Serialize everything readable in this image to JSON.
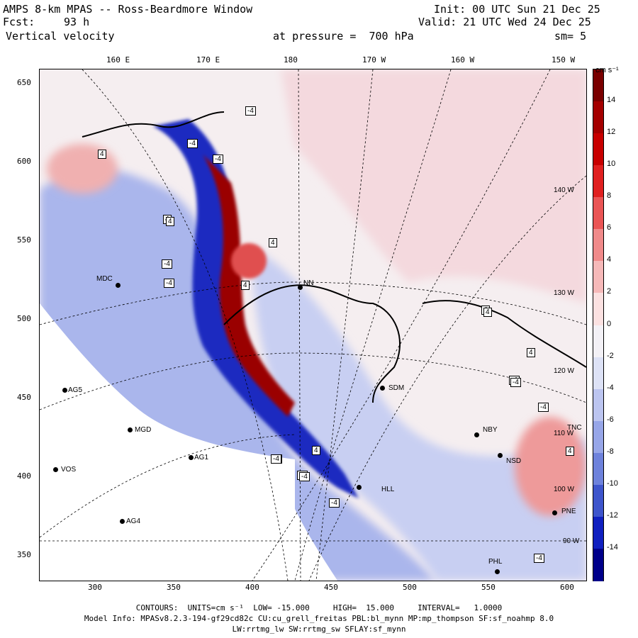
{
  "header": {
    "title": "AMPS 8-km MPAS -- Ross-Beardmore Window",
    "fcst_label": "Fcst:",
    "fcst_value": "93 h",
    "variable": "Vertical velocity",
    "init": "Init: 00 UTC Sun 21 Dec 25",
    "valid": "Valid: 21 UTC Wed 24 Dec 25",
    "pressure": "at pressure =  700 hPa",
    "smoothing": "sm= 5"
  },
  "axes": {
    "top_lon_labels": [
      "160 E",
      "170 E",
      "180",
      "170 W",
      "160 W",
      "150 W"
    ],
    "y_ticks": [
      "650",
      "600",
      "550",
      "500",
      "450",
      "400",
      "350"
    ],
    "x_ticks": [
      "300",
      "350",
      "400",
      "450",
      "500",
      "550",
      "600"
    ]
  },
  "colorbar": {
    "units": "cm s⁻¹",
    "labels": [
      "14",
      "12",
      "10",
      "8",
      "6",
      "4",
      "2",
      "0",
      "-2",
      "-4",
      "-6",
      "-8",
      "-10",
      "-12",
      "-14"
    ],
    "colors": [
      "#7a0000",
      "#a40000",
      "#c80000",
      "#e02020",
      "#ea5555",
      "#f08a8a",
      "#f6b9b9",
      "#fbe1e1",
      "#f3f1f6",
      "#dde2f6",
      "#bcc5f0",
      "#97a6e8",
      "#6e82dc",
      "#3e55cc",
      "#1020c0",
      "#00008a"
    ]
  },
  "meridian_labels": [
    "140 W",
    "130 W",
    "120 W",
    "110 W",
    "100 W",
    "90 W"
  ],
  "stations": [
    "MDC",
    "NN",
    "AG5",
    "MGD",
    "VOS",
    "AG1",
    "AG4",
    "SDM",
    "NBY",
    "NSD",
    "HLL",
    "PNE",
    "PHL",
    "TNC"
  ],
  "contour_box_labels": [
    "4",
    "-4",
    "4",
    "4",
    "-4",
    "-4",
    "4",
    "-4",
    "4",
    "-4",
    "-4",
    "-4",
    "4",
    "4",
    "-4",
    "4",
    "-4",
    "4",
    "-4",
    "-4",
    "-4",
    "4",
    "-4",
    "-4"
  ],
  "footer": {
    "contours": "CONTOURS:  UNITS=cm s⁻¹  LOW= -15.000     HIGH=  15.000     INTERVAL=   1.0000",
    "model_info": "Model Info: MPASv8.2.3-194-gf29cd82c CU:cu_grell_freitas PBL:bl_mynn MP:mp_thompson SF:sf_noahmp 8.0",
    "physics": "LW:rrtmg_lw SW:rrtmg_sw SFLAY:sf_mynn"
  }
}
